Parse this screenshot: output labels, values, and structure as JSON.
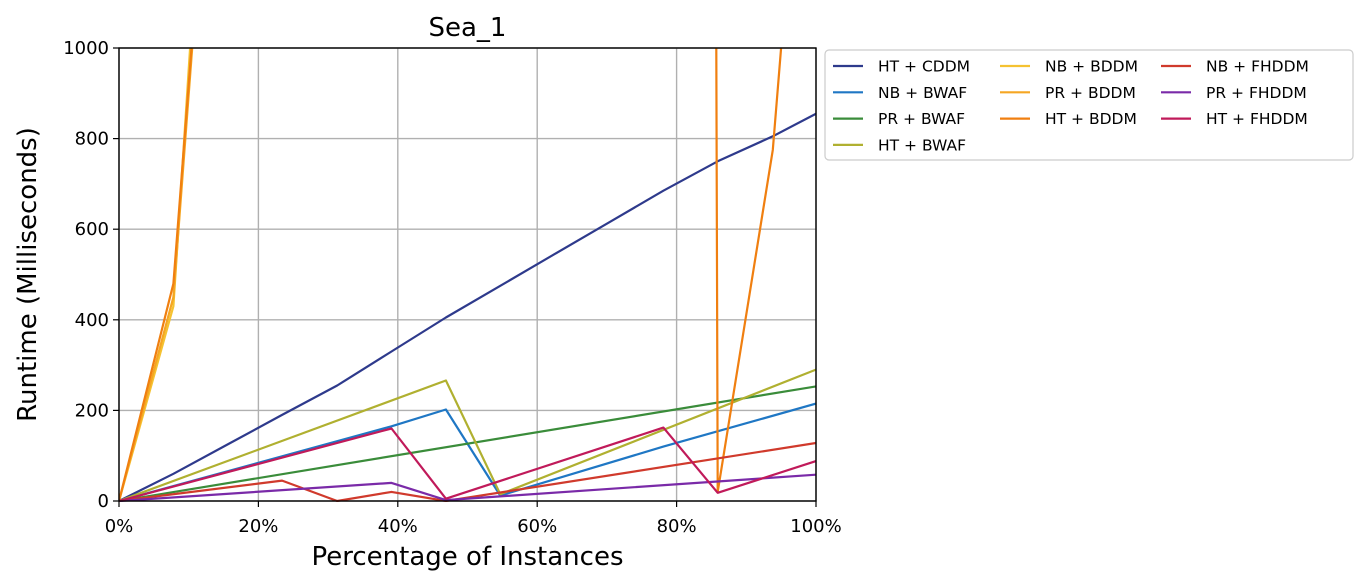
{
  "chart_data": {
    "type": "line",
    "title": "Sea_1",
    "xlabel": "Percentage of Instances",
    "ylabel": "Runtime (Milliseconds)",
    "xlim": [
      0,
      100
    ],
    "ylim": [
      0,
      1000
    ],
    "x_ticks": [
      0,
      20,
      40,
      60,
      80,
      100
    ],
    "x_tick_labels": [
      "0%",
      "20%",
      "40%",
      "60%",
      "80%",
      "100%"
    ],
    "y_ticks": [
      0,
      200,
      400,
      600,
      800,
      1000
    ],
    "y_tick_labels": [
      "0",
      "200",
      "400",
      "600",
      "800",
      "1000"
    ],
    "grid": true,
    "legend_position": "outside-top-right",
    "legend_columns": 3,
    "series": [
      {
        "name": "HT + CDDM",
        "color": "#2e3a8c",
        "points": [
          [
            0,
            0
          ],
          [
            7.8,
            60
          ],
          [
            15.6,
            125
          ],
          [
            23.4,
            190
          ],
          [
            31.3,
            255
          ],
          [
            39.1,
            330
          ],
          [
            46.9,
            405
          ],
          [
            54.7,
            475
          ],
          [
            62.5,
            545
          ],
          [
            70.3,
            615
          ],
          [
            78.1,
            685
          ],
          [
            85.9,
            750
          ],
          [
            93.8,
            805
          ],
          [
            100,
            855
          ]
        ]
      },
      {
        "name": "NB + BWAF",
        "color": "#1f77c4",
        "points": [
          [
            0,
            0
          ],
          [
            39.1,
            165
          ],
          [
            46.9,
            202
          ],
          [
            54.7,
            12
          ],
          [
            78.1,
            120
          ],
          [
            100,
            215
          ]
        ]
      },
      {
        "name": "PR + BWAF",
        "color": "#3a8c3a",
        "points": [
          [
            0,
            0
          ],
          [
            100,
            253
          ]
        ]
      },
      {
        "name": "HT + BWAF",
        "color": "#b0b030",
        "points": [
          [
            0,
            0
          ],
          [
            46.9,
            266
          ],
          [
            54.7,
            15
          ],
          [
            100,
            290
          ]
        ]
      },
      {
        "name": "NB + BDDM",
        "color": "#f5c231",
        "points": [
          [
            0,
            0
          ],
          [
            7.8,
            430
          ],
          [
            10.2,
            1000
          ]
        ]
      },
      {
        "name": "PR + BDDM",
        "color": "#f5a623",
        "points": [
          [
            0,
            0
          ],
          [
            7.8,
            450
          ],
          [
            10.5,
            1000
          ]
        ]
      },
      {
        "name": "HT + BDDM",
        "color": "#f07f10",
        "points": [
          [
            0,
            0
          ],
          [
            7.8,
            480
          ],
          [
            10.4,
            1000
          ],
          null,
          [
            85.7,
            1000
          ],
          [
            85.9,
            20
          ],
          [
            93.8,
            775
          ],
          [
            95.0,
            1000
          ]
        ]
      },
      {
        "name": "NB + FHDDM",
        "color": "#d03a2c",
        "points": [
          [
            0,
            0
          ],
          [
            23.4,
            45
          ],
          [
            31.3,
            0
          ],
          [
            39.1,
            20
          ],
          [
            46.9,
            0
          ],
          [
            100,
            128
          ]
        ]
      },
      {
        "name": "PR + FHDDM",
        "color": "#7a2aa8",
        "points": [
          [
            0,
            0
          ],
          [
            39.1,
            40
          ],
          [
            46.9,
            2
          ],
          [
            100,
            58
          ]
        ]
      },
      {
        "name": "HT + FHDDM",
        "color": "#c01a5a",
        "points": [
          [
            0,
            0
          ],
          [
            39.1,
            160
          ],
          [
            46.9,
            5
          ],
          [
            78.1,
            162
          ],
          [
            85.9,
            18
          ],
          [
            100,
            88
          ]
        ]
      }
    ]
  }
}
